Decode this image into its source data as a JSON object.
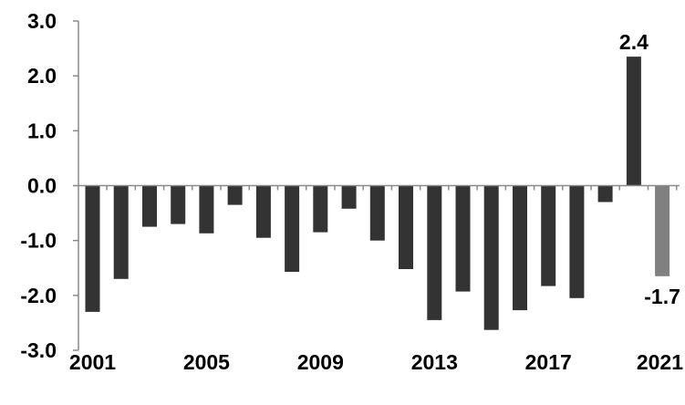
{
  "chart_data": {
    "type": "bar",
    "title": "",
    "xlabel": "",
    "ylabel": "",
    "ylim": [
      -3.0,
      3.0
    ],
    "y_ticks": [
      3.0,
      2.0,
      1.0,
      0.0,
      -1.0,
      -2.0,
      -3.0
    ],
    "y_tick_labels": [
      "3.0",
      "2.0",
      "1.0",
      "0.0",
      "-1.0",
      "-2.0",
      "-3.0"
    ],
    "categories": [
      "2001",
      "2002",
      "2003",
      "2004",
      "2005",
      "2006",
      "2007",
      "2008",
      "2009",
      "2010",
      "2011",
      "2012",
      "2013",
      "2014",
      "2015",
      "2016",
      "2017",
      "2018",
      "2019",
      "2020",
      "2021"
    ],
    "x_tick_labels": [
      "2001",
      "2005",
      "2009",
      "2013",
      "2017",
      "2021"
    ],
    "values": [
      -2.3,
      -1.7,
      -0.75,
      -0.7,
      -0.87,
      -0.35,
      -0.95,
      -1.57,
      -0.85,
      -0.42,
      -1.0,
      -1.52,
      -2.45,
      -1.93,
      -2.63,
      -2.27,
      -1.83,
      -2.05,
      -0.3,
      2.35,
      -1.65
    ],
    "data_labels": [
      {
        "category": "2020",
        "text": "2.4"
      },
      {
        "category": "2021",
        "text": "-1.7"
      }
    ],
    "colors": {
      "bar": "#333333",
      "highlight_bar": "#808080",
      "axis": "#8a8a8a"
    },
    "highlight_categories": [
      "2021"
    ],
    "grid": false,
    "legend": "none"
  }
}
